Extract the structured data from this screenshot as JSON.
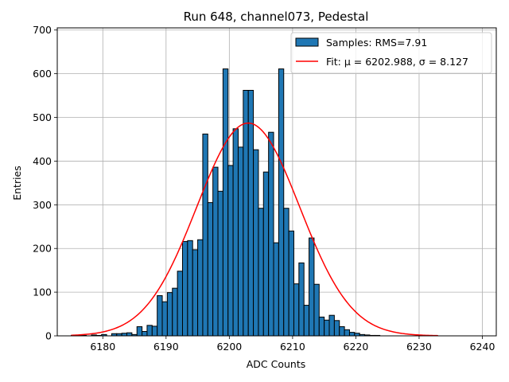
{
  "chart_data": {
    "type": "histogram",
    "title": "Run 648, channel073, Pedestal",
    "xlabel": "ADC Counts",
    "ylabel": "Entries",
    "xlim": [
      6172.8,
      6242.2
    ],
    "ylim": [
      0,
      705
    ],
    "xticks": [
      6180,
      6190,
      6200,
      6210,
      6220,
      6230,
      6240
    ],
    "yticks": [
      0,
      100,
      200,
      300,
      400,
      500,
      600,
      700
    ],
    "grid": true,
    "legend_position": "top-right",
    "bin_edges_start": 6175,
    "bin_width": 0.8,
    "counts": [
      1,
      1,
      1,
      0,
      2,
      1,
      3,
      0,
      5,
      5,
      6,
      7,
      3,
      21,
      10,
      24,
      22,
      92,
      78,
      99,
      109,
      148,
      216,
      218,
      197,
      220,
      462,
      305,
      386,
      331,
      611,
      390,
      474,
      432,
      562,
      562,
      426,
      292,
      375,
      466,
      213,
      611,
      292,
      240,
      119,
      167,
      70,
      224,
      118,
      43,
      36,
      47,
      35,
      21,
      14,
      8,
      6,
      3,
      2,
      1,
      1
    ],
    "series": [
      {
        "name": "Samples: RMS=7.91",
        "type": "bar",
        "color": "#1f77b4",
        "edgecolor": "#000000"
      },
      {
        "name": "Fit: μ = 6202.988, σ = 8.127",
        "type": "line",
        "color": "#ff0000",
        "mu": 6202.988,
        "sigma": 8.127,
        "amplitude": 487,
        "x_range": [
          6175,
          6233
        ]
      }
    ]
  }
}
